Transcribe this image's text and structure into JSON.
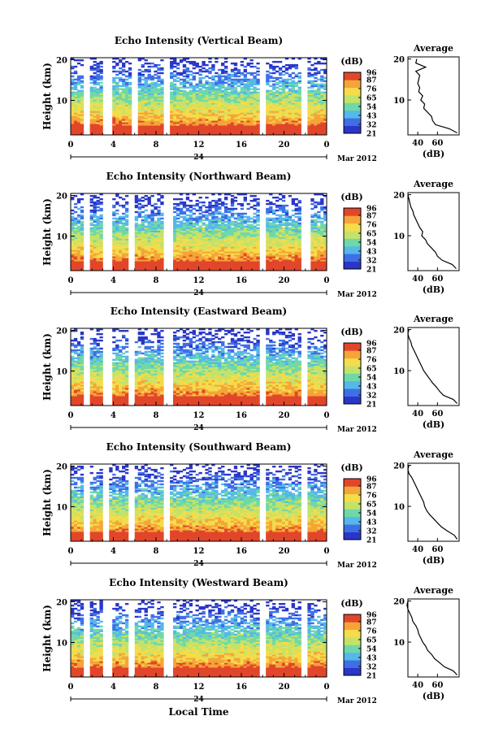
{
  "colorbar": {
    "unit_label": "(dB)",
    "tick_labels": [
      "96",
      "87",
      "76",
      "65",
      "54",
      "43",
      "32",
      "21"
    ],
    "value_range": [
      21,
      96
    ],
    "colors": [
      "#2a36c8",
      "#3f6fe6",
      "#55b8e8",
      "#6fd8a8",
      "#c4e26a",
      "#f4dc4a",
      "#f6a438",
      "#e2462a"
    ]
  },
  "shared_axes": {
    "ylabel": "Height (km)",
    "y_tick_labels": [
      "20",
      "10"
    ],
    "ylim_km": [
      1.5,
      20.5
    ],
    "x_tick_labels": [
      "0",
      "4",
      "8",
      "12",
      "16",
      "20",
      "0"
    ],
    "date_center": "24",
    "date_right": "Mar 2012",
    "xlabel_bottom": "Local Time",
    "profile_title": "Average",
    "profile_xlabel": "(dB)",
    "profile_x_tick_labels": [
      "40",
      "60"
    ],
    "profile_y_tick_labels": [
      "20",
      "10"
    ]
  },
  "chart_data": [
    {
      "type": "heatmap",
      "title": "Echo Intensity (Vertical Beam)",
      "gaps_hours": [
        [
          1.3,
          1.9
        ],
        [
          2.9,
          3.8
        ],
        [
          5.6,
          6.2
        ],
        [
          8.6,
          9.4
        ],
        [
          17.6,
          18.2
        ],
        [
          21.6,
          22.2
        ]
      ],
      "profile": {
        "type": "line",
        "height_km": [
          2,
          3,
          4,
          5,
          6,
          7,
          8,
          9,
          10,
          11,
          12,
          13,
          14,
          15,
          16,
          17,
          18,
          19,
          20
        ],
        "avg_db": [
          80,
          72,
          58,
          55,
          54,
          50,
          46,
          47,
          43,
          45,
          41,
          42,
          40,
          41,
          42,
          38,
          48,
          38,
          39
        ]
      }
    },
    {
      "type": "heatmap",
      "title": "Echo Intensity (Northward Beam)",
      "gaps_hours": [
        [
          1.3,
          1.9
        ],
        [
          3.0,
          4.0
        ],
        [
          5.5,
          6.1
        ],
        [
          8.6,
          9.5
        ],
        [
          17.6,
          18.2
        ],
        [
          21.7,
          22.4
        ]
      ],
      "profile": {
        "type": "line",
        "height_km": [
          2,
          3,
          4,
          5,
          6,
          7,
          8,
          9,
          10,
          11,
          12,
          13,
          14,
          15,
          16,
          17,
          18,
          19,
          20
        ],
        "avg_db": [
          79,
          75,
          65,
          60,
          58,
          54,
          50,
          48,
          44,
          45,
          42,
          40,
          38,
          36,
          35,
          33,
          32,
          31,
          30
        ]
      }
    },
    {
      "type": "heatmap",
      "title": "Echo Intensity (Eastward Beam)",
      "gaps_hours": [
        [
          1.3,
          1.9
        ],
        [
          3.0,
          3.9
        ],
        [
          5.5,
          6.0
        ],
        [
          8.6,
          9.5
        ],
        [
          17.6,
          18.2
        ],
        [
          21.6,
          22.3
        ]
      ],
      "profile": {
        "type": "line",
        "height_km": [
          2,
          3,
          4,
          5,
          6,
          7,
          8,
          9,
          10,
          11,
          12,
          13,
          14,
          15,
          16,
          17,
          18,
          19,
          20
        ],
        "avg_db": [
          80,
          76,
          66,
          62,
          59,
          55,
          52,
          49,
          46,
          44,
          42,
          40,
          38,
          36,
          34,
          33,
          31,
          30,
          31
        ]
      }
    },
    {
      "type": "heatmap",
      "title": "Echo Intensity (Southward Beam)",
      "gaps_hours": [
        [
          1.3,
          1.9
        ],
        [
          2.9,
          3.7
        ],
        [
          5.5,
          6.1
        ],
        [
          8.6,
          9.4
        ],
        [
          17.6,
          18.2
        ],
        [
          21.6,
          22.3
        ]
      ],
      "profile": {
        "type": "line",
        "height_km": [
          2,
          3,
          4,
          5,
          6,
          7,
          8,
          9,
          10,
          11,
          12,
          13,
          14,
          15,
          16,
          17,
          18,
          19,
          20
        ],
        "avg_db": [
          80,
          77,
          70,
          64,
          60,
          56,
          52,
          49,
          47,
          46,
          44,
          42,
          40,
          38,
          36,
          34,
          31,
          30,
          31
        ]
      }
    },
    {
      "type": "heatmap",
      "title": "Echo Intensity (Westward Beam)",
      "gaps_hours": [
        [
          1.3,
          1.9
        ],
        [
          3.0,
          3.9
        ],
        [
          5.5,
          6.0
        ],
        [
          8.6,
          9.5
        ],
        [
          17.6,
          18.2
        ],
        [
          21.6,
          22.3
        ]
      ],
      "profile": {
        "type": "line",
        "height_km": [
          2,
          3,
          4,
          5,
          6,
          7,
          8,
          9,
          10,
          11,
          12,
          13,
          14,
          15,
          16,
          17,
          18,
          19,
          20
        ],
        "avg_db": [
          80,
          76,
          67,
          62,
          57,
          54,
          50,
          48,
          45,
          43,
          41,
          40,
          38,
          35,
          34,
          32,
          30,
          29,
          30
        ]
      }
    }
  ]
}
